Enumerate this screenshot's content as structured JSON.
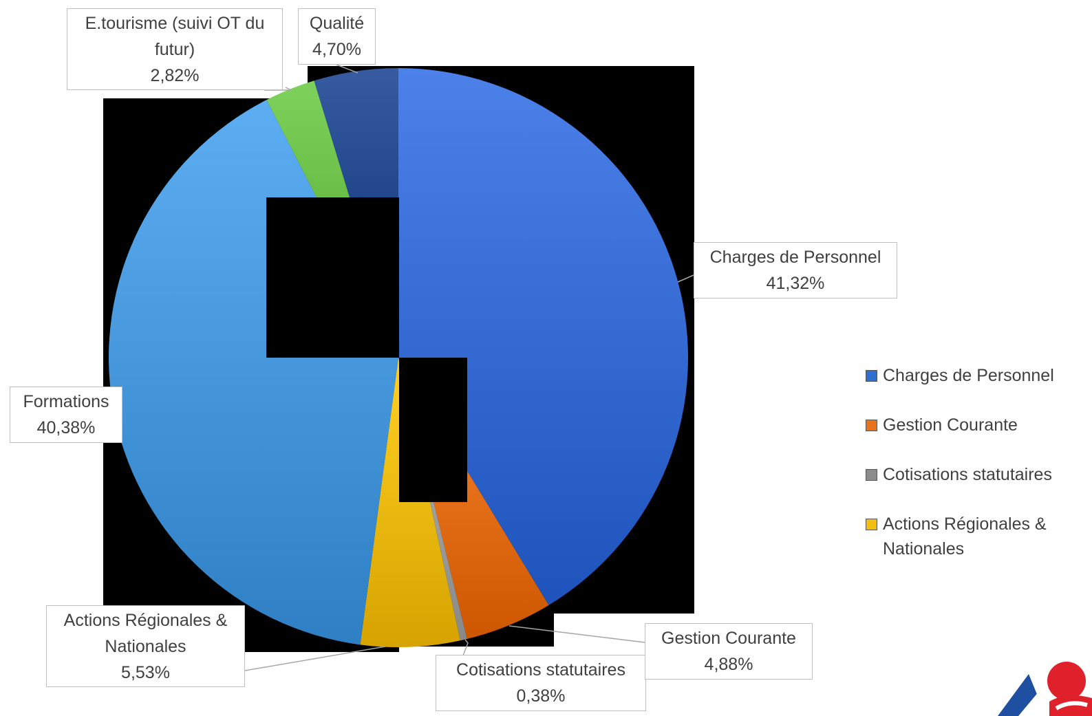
{
  "chart_data": {
    "type": "pie",
    "title": "",
    "slices": [
      {
        "label": "Charges de Personnel",
        "value": 41.32,
        "display": "41,32%",
        "color": "#3a6fd8"
      },
      {
        "label": "Gestion Courante",
        "value": 4.88,
        "display": "4,88%",
        "color": "#e8731c"
      },
      {
        "label": "Cotisations statutaires",
        "value": 0.38,
        "display": "0,38%",
        "color": "#a5a5a5"
      },
      {
        "label": "Actions Régionales & Nationales",
        "value": 5.53,
        "display": "5,53%",
        "color": "#f2bf10"
      },
      {
        "label": "Formations",
        "value": 40.38,
        "display": "40,38%",
        "color": "#4a9be0"
      },
      {
        "label": "E.tourisme (suivi OT du futur)",
        "value": 2.82,
        "display": "2,82%",
        "color": "#6cc04a"
      },
      {
        "label": "Qualité",
        "value": 4.7,
        "display": "4,70%",
        "color": "#24498f"
      }
    ],
    "legend": {
      "position": "right",
      "entries": [
        "Charges de Personnel",
        "Gestion Courante",
        "Cotisations statutaires",
        "Actions Régionales & Nationales"
      ]
    },
    "legend_colors": [
      "#2f6fd0",
      "#e8731c",
      "#8c8c8c",
      "#f2bf10"
    ]
  },
  "labels": {
    "etourisme_line1": "E.tourisme (suivi OT du",
    "etourisme_line2": "futur)",
    "etourisme_pct": "2,82%",
    "qualite_name": "Qualité",
    "qualite_pct": "4,70%",
    "charges_name": "Charges de Personnel",
    "charges_pct": "41,32%",
    "formations_name": "Formations",
    "formations_pct": "40,38%",
    "actions_line1": "Actions Régionales &",
    "actions_line2": "Nationales",
    "actions_pct": "5,53%",
    "cotisations_name": "Cotisations statutaires",
    "cotisations_pct": "0,38%",
    "gestion_name": "Gestion Courante",
    "gestion_pct": "4,88%"
  },
  "logo": {
    "icon": "organization-logo-icon",
    "colors": [
      "#1f4fa0",
      "#e0202a"
    ]
  }
}
